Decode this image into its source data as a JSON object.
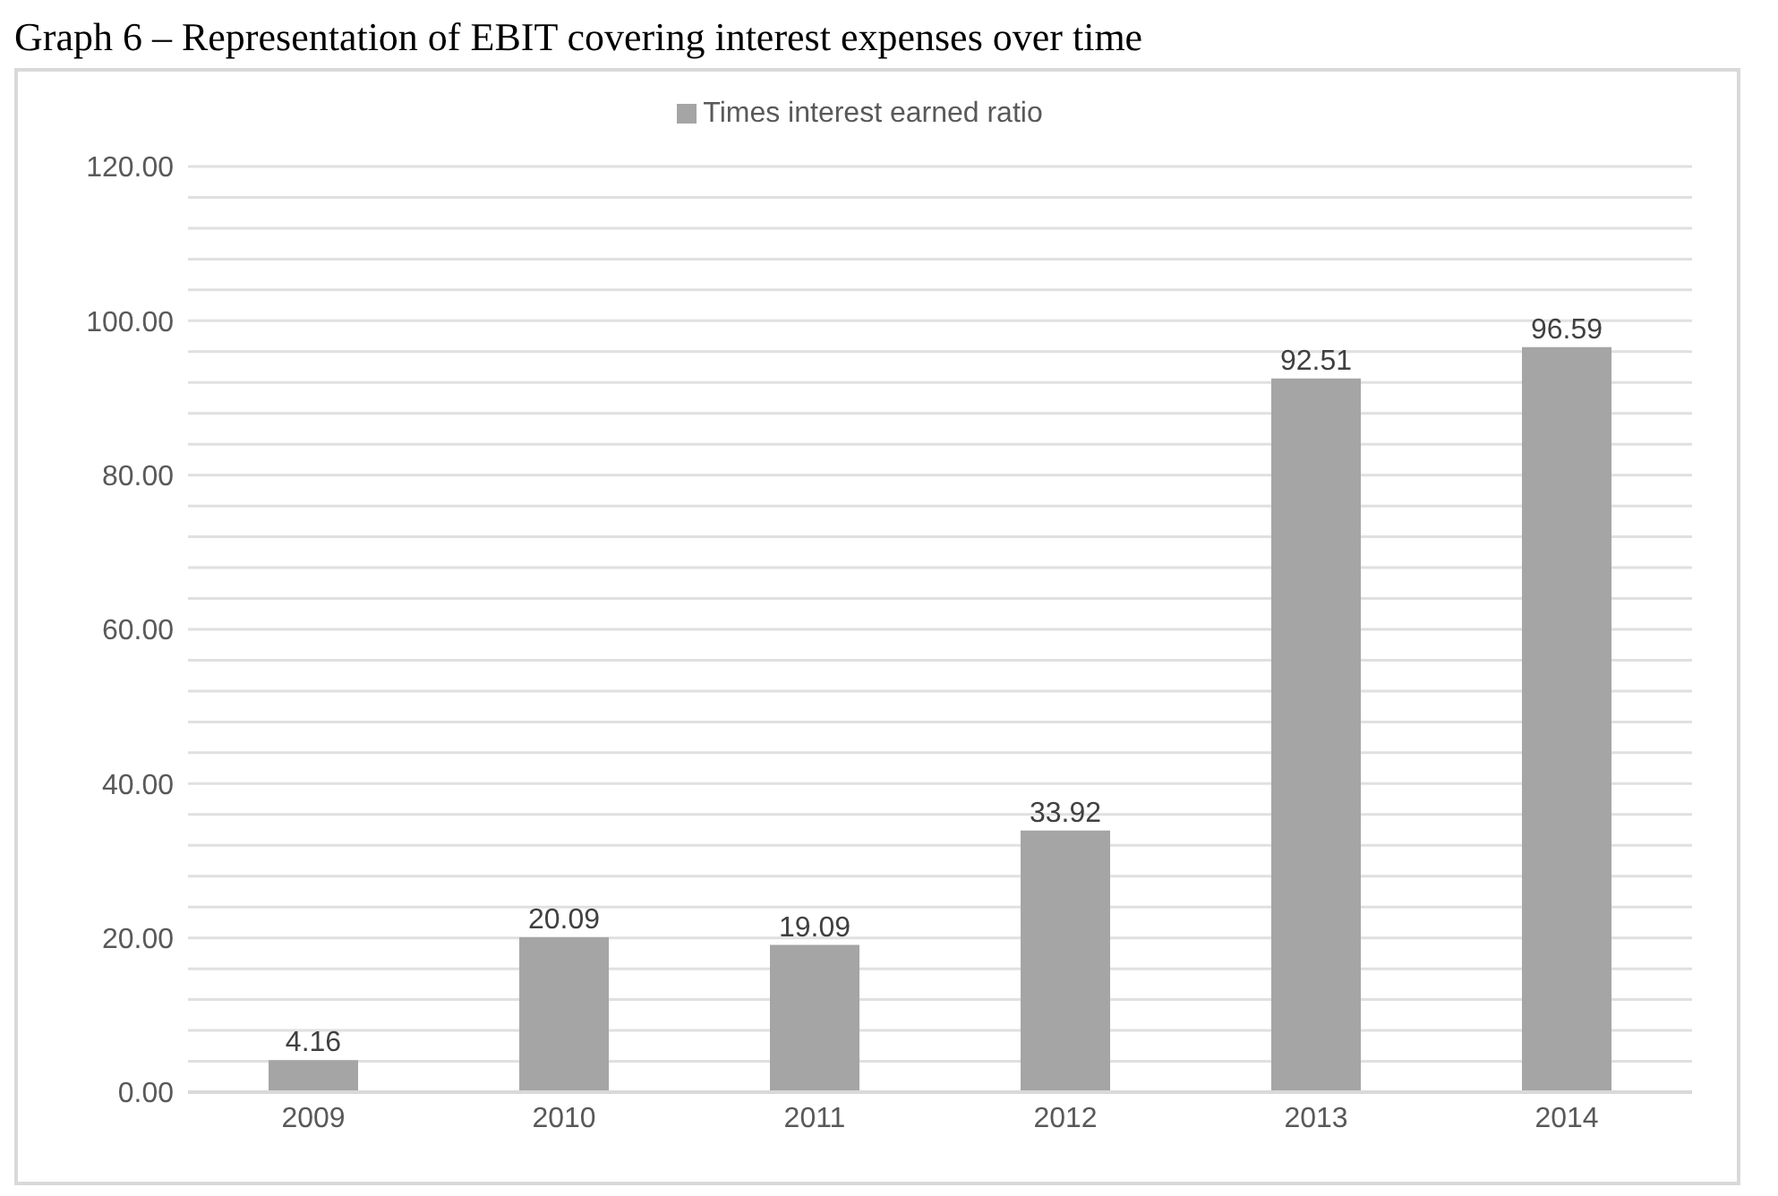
{
  "chart_data": {
    "type": "bar",
    "title": "Graph 6 – Representation of EBIT covering interest expenses over time",
    "categories": [
      "2009",
      "2010",
      "2011",
      "2012",
      "2013",
      "2014"
    ],
    "series": [
      {
        "name": "Times interest earned ratio",
        "color": "#a5a5a5",
        "values": [
          4.16,
          20.09,
          19.09,
          33.92,
          92.51,
          96.59
        ]
      }
    ],
    "ylim": [
      0,
      120
    ],
    "yticks": [
      {
        "value": 0,
        "label": "0.00"
      },
      {
        "value": 4,
        "label": null
      },
      {
        "value": 8,
        "label": null
      },
      {
        "value": 12,
        "label": null
      },
      {
        "value": 16,
        "label": null
      },
      {
        "value": 20,
        "label": "20.00"
      },
      {
        "value": 24,
        "label": null
      },
      {
        "value": 28,
        "label": null
      },
      {
        "value": 32,
        "label": null
      },
      {
        "value": 36,
        "label": null
      },
      {
        "value": 40,
        "label": "40.00"
      },
      {
        "value": 44,
        "label": null
      },
      {
        "value": 48,
        "label": null
      },
      {
        "value": 52,
        "label": null
      },
      {
        "value": 56,
        "label": null
      },
      {
        "value": 60,
        "label": "60.00"
      },
      {
        "value": 64,
        "label": null
      },
      {
        "value": 68,
        "label": null
      },
      {
        "value": 72,
        "label": null
      },
      {
        "value": 76,
        "label": null
      },
      {
        "value": 80,
        "label": "80.00"
      },
      {
        "value": 84,
        "label": null
      },
      {
        "value": 88,
        "label": null
      },
      {
        "value": 92,
        "label": null
      },
      {
        "value": 96,
        "label": null
      },
      {
        "value": 100,
        "label": "100.00"
      },
      {
        "value": 104,
        "label": null
      },
      {
        "value": 108,
        "label": null
      },
      {
        "value": 112,
        "label": null
      },
      {
        "value": 116,
        "label": null
      },
      {
        "value": 120,
        "label": "120.00"
      }
    ],
    "grid": "y",
    "legend": "top",
    "data_labels": true
  }
}
